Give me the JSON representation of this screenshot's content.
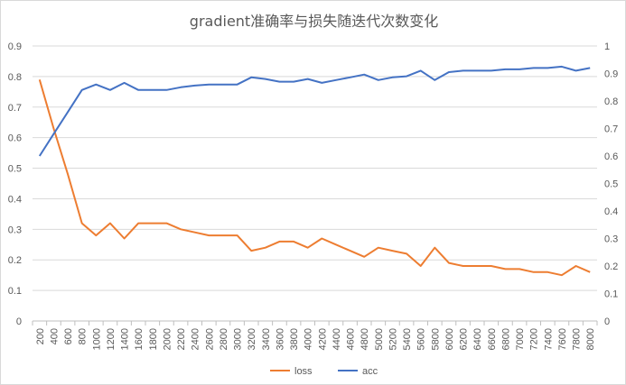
{
  "chart_data": {
    "type": "line",
    "title": "gradient准确率与损失随迭代次数变化",
    "xlabel": "",
    "ylabel": "",
    "y2label": "",
    "categories": [
      "200",
      "400",
      "600",
      "800",
      "1000",
      "1200",
      "1400",
      "1600",
      "1800",
      "2000",
      "2200",
      "2400",
      "2600",
      "2800",
      "3000",
      "3200",
      "3400",
      "3600",
      "3800",
      "4000",
      "4200",
      "4400",
      "4600",
      "4800",
      "5000",
      "5200",
      "5400",
      "5600",
      "5800",
      "6000",
      "6200",
      "6400",
      "6600",
      "6800",
      "7000",
      "7200",
      "7400",
      "7600",
      "7800",
      "8000"
    ],
    "ylim": [
      0,
      0.9
    ],
    "y2lim": [
      0,
      1
    ],
    "yticks": [
      "0",
      "0.1",
      "0.2",
      "0.3",
      "0.4",
      "0.5",
      "0.6",
      "0.7",
      "0.8",
      "0.9"
    ],
    "y2ticks": [
      "0",
      "0.1",
      "0.2",
      "0.3",
      "0.4",
      "0.5",
      "0.6",
      "0.7",
      "0.8",
      "0.9",
      "1"
    ],
    "grid": true,
    "legend_position": "bottom",
    "series": [
      {
        "name": "loss",
        "axis": "left",
        "color": "#ED7D31",
        "values": [
          0.79,
          0.63,
          0.48,
          0.32,
          0.28,
          0.32,
          0.27,
          0.32,
          0.32,
          0.32,
          0.3,
          0.29,
          0.28,
          0.28,
          0.28,
          0.23,
          0.24,
          0.26,
          0.26,
          0.24,
          0.27,
          0.25,
          0.23,
          0.21,
          0.24,
          0.23,
          0.22,
          0.18,
          0.24,
          0.19,
          0.18,
          0.18,
          0.18,
          0.17,
          0.17,
          0.16,
          0.16,
          0.15,
          0.18,
          0.16
        ]
      },
      {
        "name": "acc",
        "axis": "right",
        "color": "#4472C4",
        "values": [
          0.6,
          0.68,
          0.76,
          0.84,
          0.86,
          0.84,
          0.866,
          0.84,
          0.84,
          0.84,
          0.85,
          0.856,
          0.86,
          0.86,
          0.86,
          0.886,
          0.88,
          0.87,
          0.87,
          0.88,
          0.866,
          0.876,
          0.886,
          0.896,
          0.876,
          0.886,
          0.89,
          0.91,
          0.876,
          0.905,
          0.91,
          0.91,
          0.91,
          0.915,
          0.915,
          0.92,
          0.92,
          0.925,
          0.91,
          0.92
        ]
      }
    ]
  }
}
